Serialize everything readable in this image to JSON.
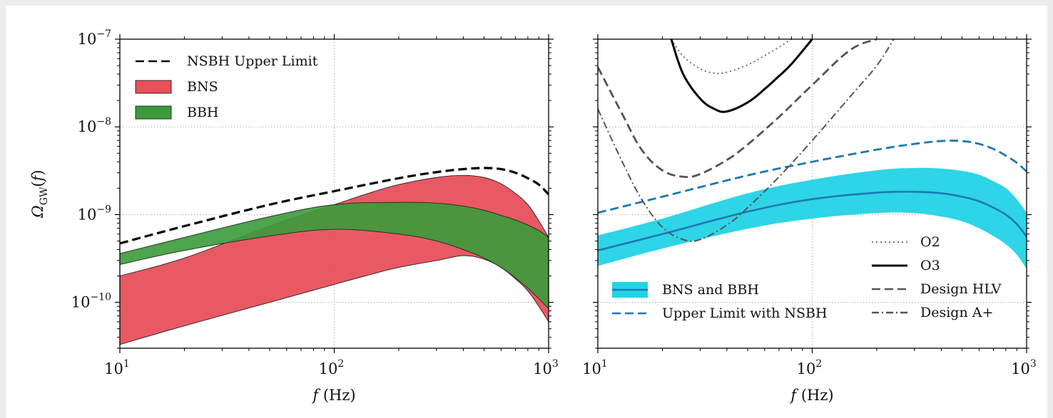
{
  "chart_data": [
    {
      "type": "area",
      "panel": "left",
      "x_scale": "log",
      "y_scale": "log",
      "xlim": [
        10,
        1000
      ],
      "ylim": [
        3e-11,
        1e-07
      ],
      "xlabel": "f (Hz)",
      "ylabel": "Ω_GW(f)",
      "grid": true,
      "legend_position": "top-left",
      "x_ticks": [
        {
          "value": 10,
          "base": "10",
          "exp": "1"
        },
        {
          "value": 100,
          "base": "10",
          "exp": "2"
        },
        {
          "value": 1000,
          "base": "10",
          "exp": "3"
        }
      ],
      "y_ticks": [
        {
          "value": 1e-07,
          "base": "10",
          "exp": "−7"
        },
        {
          "value": 1e-08,
          "base": "10",
          "exp": "−8"
        },
        {
          "value": 1e-09,
          "base": "10",
          "exp": "−9"
        },
        {
          "value": 1e-10,
          "base": "10",
          "exp": "−10"
        }
      ],
      "series": [
        {
          "name": "NSBH Upper Limit",
          "kind": "line",
          "style": "dashed",
          "color": "#000000",
          "x": [
            10,
            20,
            50,
            100,
            200,
            300,
            400,
            500,
            600,
            700,
            800,
            900,
            1000
          ],
          "y": [
            4.7e-10,
            7.4e-10,
            1.3e-09,
            1.85e-09,
            2.6e-09,
            3.05e-09,
            3.3e-09,
            3.4e-09,
            3.3e-09,
            3e-09,
            2.6e-09,
            2.2e-09,
            1.7e-09
          ]
        },
        {
          "name": "BNS",
          "kind": "band",
          "color": "#e8505b",
          "x": [
            10,
            20,
            50,
            100,
            150,
            200,
            300,
            400,
            500,
            600,
            700,
            800,
            900,
            1000
          ],
          "y_upper": [
            2e-10,
            3.2e-10,
            7.4e-10,
            1.3e-09,
            1.8e-09,
            2.2e-09,
            2.65e-09,
            2.8e-09,
            2.65e-09,
            2.25e-09,
            1.75e-09,
            1.3e-09,
            8.5e-10,
            5.5e-10
          ],
          "y_lower": [
            3.3e-11,
            5.4e-11,
            1e-10,
            1.6e-10,
            2.1e-10,
            2.5e-10,
            3e-10,
            3.4e-10,
            3.1e-10,
            2.5e-10,
            1.85e-10,
            1.35e-10,
            9e-11,
            6e-11
          ]
        },
        {
          "name": "BBH",
          "kind": "band",
          "color": "#3a9b3a",
          "x": [
            10,
            20,
            50,
            100,
            200,
            300,
            400,
            500,
            600,
            700,
            800,
            900,
            1000
          ],
          "y_upper": [
            3.6e-10,
            5.5e-10,
            9.5e-10,
            1.3e-09,
            1.38e-09,
            1.35e-09,
            1.25e-09,
            1.12e-09,
            9.8e-10,
            8.7e-10,
            7.6e-10,
            6.6e-10,
            5.5e-10
          ],
          "y_lower": [
            2.7e-10,
            3.9e-10,
            5.7e-10,
            6.8e-10,
            6e-10,
            5e-10,
            4e-10,
            3.2e-10,
            2.5e-10,
            1.9e-10,
            1.45e-10,
            1.1e-10,
            8.5e-11
          ]
        }
      ]
    },
    {
      "type": "line",
      "panel": "right",
      "x_scale": "log",
      "y_scale": "log",
      "xlim": [
        10,
        1000
      ],
      "ylim": [
        3e-11,
        1e-07
      ],
      "xlabel": "f (Hz)",
      "grid": true,
      "legend_position": "bottom",
      "x_ticks": [
        {
          "value": 10,
          "base": "10",
          "exp": "1"
        },
        {
          "value": 100,
          "base": "10",
          "exp": "2"
        },
        {
          "value": 1000,
          "base": "10",
          "exp": "3"
        }
      ],
      "series": [
        {
          "name": "BNS and BBH",
          "kind": "band_with_line",
          "color": "#22d3e6",
          "line_color": "#1f77b4",
          "x": [
            10,
            20,
            50,
            100,
            200,
            300,
            400,
            500,
            600,
            700,
            800,
            900,
            1000
          ],
          "y": [
            3.9e-10,
            6e-10,
            1.08e-09,
            1.5e-09,
            1.78e-09,
            1.82e-09,
            1.75e-09,
            1.6e-09,
            1.42e-09,
            1.2e-09,
            1e-09,
            7.8e-10,
            5.6e-10
          ],
          "y_upper": [
            5.8e-10,
            9e-10,
            1.75e-09,
            2.5e-09,
            3.2e-09,
            3.4e-09,
            3.35e-09,
            3.15e-09,
            2.85e-09,
            2.4e-09,
            2e-09,
            1.5e-09,
            1.05e-09
          ],
          "y_lower": [
            2.6e-10,
            4.1e-10,
            6.9e-10,
            9e-10,
            1.04e-09,
            1.04e-09,
            9.5e-10,
            8.4e-10,
            7e-10,
            5.7e-10,
            4.6e-10,
            3.5e-10,
            2.4e-10
          ]
        },
        {
          "name": "Upper Limit with NSBH",
          "kind": "line",
          "style": "dashed",
          "color": "#1f77b4",
          "x": [
            10,
            20,
            50,
            100,
            200,
            300,
            400,
            500,
            600,
            700,
            800,
            900,
            1000
          ],
          "y": [
            1.05e-09,
            1.6e-09,
            2.8e-09,
            4e-09,
            5.5e-09,
            6.4e-09,
            6.9e-09,
            6.9e-09,
            6.4e-09,
            5.6e-09,
            4.7e-09,
            3.9e-09,
            3.1e-09
          ]
        },
        {
          "name": "O2",
          "kind": "line",
          "style": "dotted",
          "color": "#666666",
          "x": [
            22,
            25,
            30,
            35,
            40,
            50,
            60,
            70,
            80
          ],
          "y": [
            1e-07,
            6.4e-08,
            4.6e-08,
            4.1e-08,
            4.2e-08,
            5.1e-08,
            6.5e-08,
            8.1e-08,
            1e-07
          ]
        },
        {
          "name": "O3",
          "kind": "line",
          "style": "solid",
          "color": "#000000",
          "x": [
            22,
            25,
            30,
            35,
            40,
            50,
            60,
            70,
            80,
            100
          ],
          "y": [
            1e-07,
            4e-08,
            2.1e-08,
            1.6e-08,
            1.5e-08,
            1.9e-08,
            2.7e-08,
            3.8e-08,
            5.2e-08,
            1e-07
          ]
        },
        {
          "name": "Design HLV",
          "kind": "line",
          "style": "dashed",
          "color": "#555555",
          "x": [
            10,
            13,
            16,
            20,
            25,
            30,
            40,
            50,
            70,
            100,
            150,
            200
          ],
          "y": [
            4.8e-08,
            1.4e-08,
            5.5e-09,
            3.2e-09,
            2.7e-09,
            2.9e-09,
            4.2e-09,
            6.3e-09,
            1.3e-08,
            3e-08,
            7.5e-08,
            1e-07
          ]
        },
        {
          "name": "Design A+",
          "kind": "line",
          "style": "dashdot",
          "color": "#555555",
          "x": [
            10,
            13,
            16,
            20,
            25,
            30,
            40,
            50,
            70,
            100,
            150,
            200,
            240
          ],
          "y": [
            1.6e-08,
            4e-09,
            1.5e-09,
            7.2e-10,
            5.2e-10,
            5.2e-10,
            7.6e-10,
            1.2e-09,
            2.7e-09,
            7e-09,
            2.2e-08,
            5e-08,
            1e-07
          ]
        }
      ]
    }
  ]
}
